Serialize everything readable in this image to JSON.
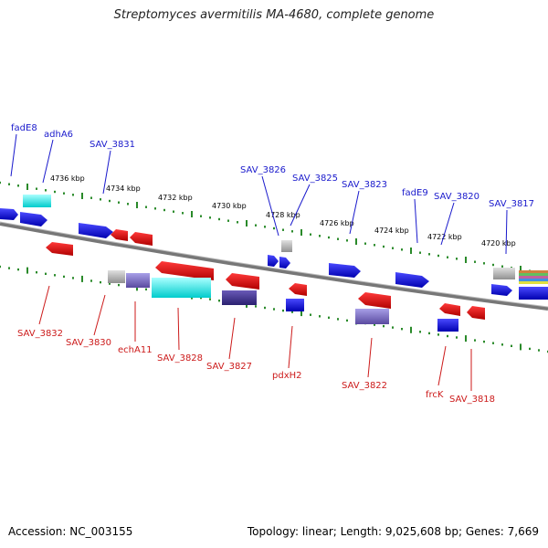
{
  "title": "Streptomyces avermitilis MA-4680, complete genome",
  "accession": "Accession: NC_003155",
  "stats": "Topology: linear; Length: 9,025,608 bp; Genes: 7,669",
  "scale_labels": [
    "4736 kbp",
    "4734 kbp",
    "4732 kbp",
    "4730 kbp",
    "4728 kbp",
    "4726 kbp",
    "4724 kbp",
    "4722 kbp",
    "4720 kbp"
  ],
  "top_genes": [
    "fadE8",
    "adhA6",
    "SAV_3831",
    "SAV_3826",
    "SAV_3825",
    "SAV_3823",
    "fadE9",
    "SAV_3820",
    "SAV_3817"
  ],
  "bottom_genes": [
    "SAV_3832",
    "SAV_3830",
    "echA11",
    "SAV_3828",
    "SAV_3827",
    "pdxH2",
    "SAV_3822",
    "frcK",
    "SAV_3818"
  ],
  "colors": {
    "forward": "#1a1acc",
    "reverse": "#cc1a1a",
    "backbone": "#888888",
    "scale": "#2a8a2a"
  }
}
